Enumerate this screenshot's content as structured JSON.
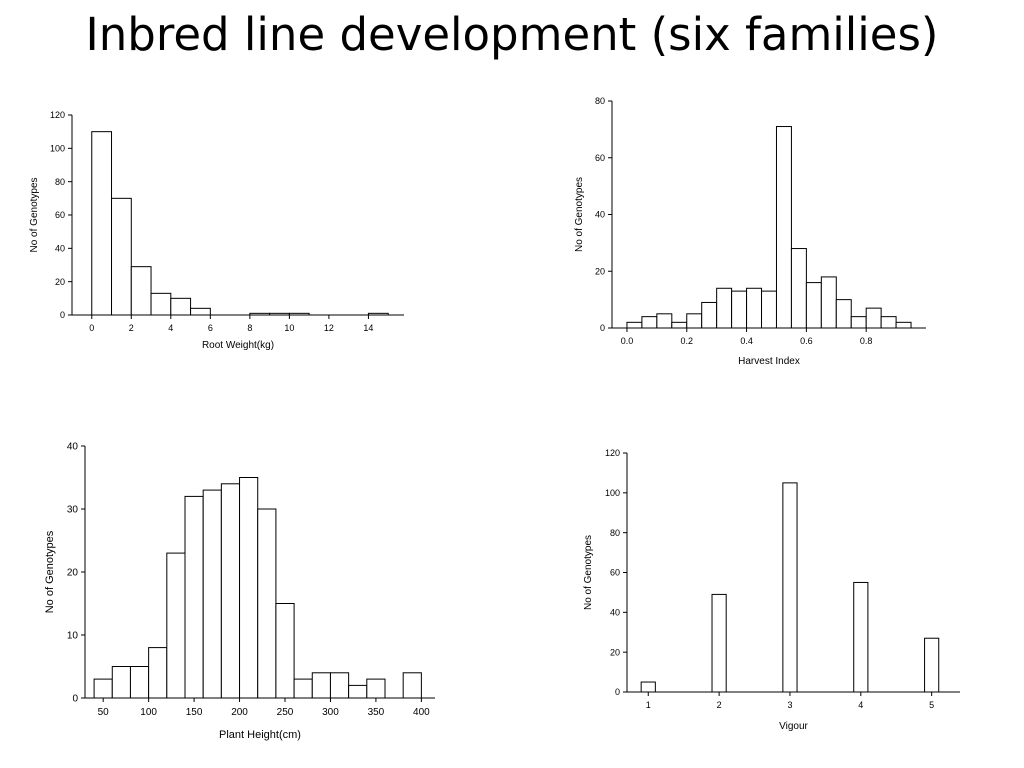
{
  "slide": {
    "title": "Inbred line development (six families)"
  },
  "chart_data": [
    {
      "id": "root-weight",
      "type": "bar",
      "xlabel": "Root Weight(kg)",
      "ylabel": "No of Genotypes",
      "xlim": [
        -1,
        15.8
      ],
      "ylim": [
        0,
        120
      ],
      "xticks": [
        0,
        2,
        4,
        6,
        8,
        10,
        12,
        14
      ],
      "yticks": [
        0,
        20,
        40,
        60,
        80,
        100,
        120
      ],
      "tick_labels_x": [
        "0",
        "2",
        "4",
        "6",
        "8",
        "10",
        "12",
        "14"
      ],
      "tick_labels_y": [
        "0",
        "20",
        "40",
        "60",
        "80",
        "100",
        "120"
      ],
      "bin_edges": [
        0,
        1,
        2,
        3,
        4,
        5,
        6,
        7,
        8,
        9,
        10,
        11,
        12,
        13,
        14,
        15
      ],
      "values": [
        110,
        70,
        29,
        13,
        10,
        4,
        0,
        0,
        1,
        1,
        1,
        0,
        0,
        0,
        1
      ]
    },
    {
      "id": "harvest-index",
      "type": "bar",
      "xlabel": "Harvest Index",
      "ylabel": "No of Genotypes",
      "xlim": [
        -0.05,
        1.0
      ],
      "ylim": [
        0,
        80
      ],
      "xticks": [
        0.0,
        0.2,
        0.4,
        0.6,
        0.8
      ],
      "yticks": [
        0,
        20,
        40,
        60,
        80
      ],
      "tick_labels_x": [
        "0.0",
        "0.2",
        "0.4",
        "0.6",
        "0.8"
      ],
      "tick_labels_y": [
        "0",
        "20",
        "40",
        "60",
        "80"
      ],
      "bin_edges": [
        0.0,
        0.05,
        0.1,
        0.15,
        0.2,
        0.25,
        0.3,
        0.35,
        0.4,
        0.45,
        0.5,
        0.55,
        0.6,
        0.65,
        0.7,
        0.75,
        0.8,
        0.85,
        0.9,
        0.95
      ],
      "values": [
        2,
        4,
        5,
        2,
        5,
        9,
        14,
        13,
        14,
        13,
        71,
        28,
        16,
        18,
        10,
        4,
        7,
        4,
        2
      ]
    },
    {
      "id": "plant-height",
      "type": "bar",
      "xlabel": "Plant Height(cm)",
      "ylabel": "No of Genotypes",
      "xlim": [
        30,
        415
      ],
      "ylim": [
        0,
        40
      ],
      "xticks": [
        50,
        100,
        150,
        200,
        250,
        300,
        350,
        400
      ],
      "yticks": [
        0,
        10,
        20,
        30,
        40
      ],
      "tick_labels_x": [
        "50",
        "100",
        "150",
        "200",
        "250",
        "300",
        "350",
        "400"
      ],
      "tick_labels_y": [
        "0",
        "10",
        "20",
        "30",
        "40"
      ],
      "bin_edges": [
        40,
        60,
        80,
        100,
        120,
        140,
        160,
        180,
        200,
        220,
        240,
        260,
        280,
        300,
        320,
        340,
        360,
        380,
        400
      ],
      "values": [
        3,
        5,
        5,
        8,
        23,
        32,
        33,
        34,
        35,
        30,
        15,
        3,
        4,
        4,
        2,
        3,
        0,
        4
      ]
    },
    {
      "id": "vigour",
      "type": "bar",
      "xlabel": "Vigour",
      "ylabel": "No of Genotypes",
      "xlim": [
        0.7,
        5.4
      ],
      "ylim": [
        0,
        120
      ],
      "xticks": [
        1,
        2,
        3,
        4,
        5
      ],
      "yticks": [
        0,
        20,
        40,
        60,
        80,
        100,
        120
      ],
      "tick_labels_x": [
        "1",
        "2",
        "3",
        "4",
        "5"
      ],
      "tick_labels_y": [
        "0",
        "20",
        "40",
        "60",
        "80",
        "100",
        "120"
      ],
      "bin_edges": [
        1,
        2,
        3,
        4,
        5
      ],
      "bin_width": 0.2,
      "values": [
        5,
        49,
        105,
        55,
        27
      ]
    }
  ]
}
